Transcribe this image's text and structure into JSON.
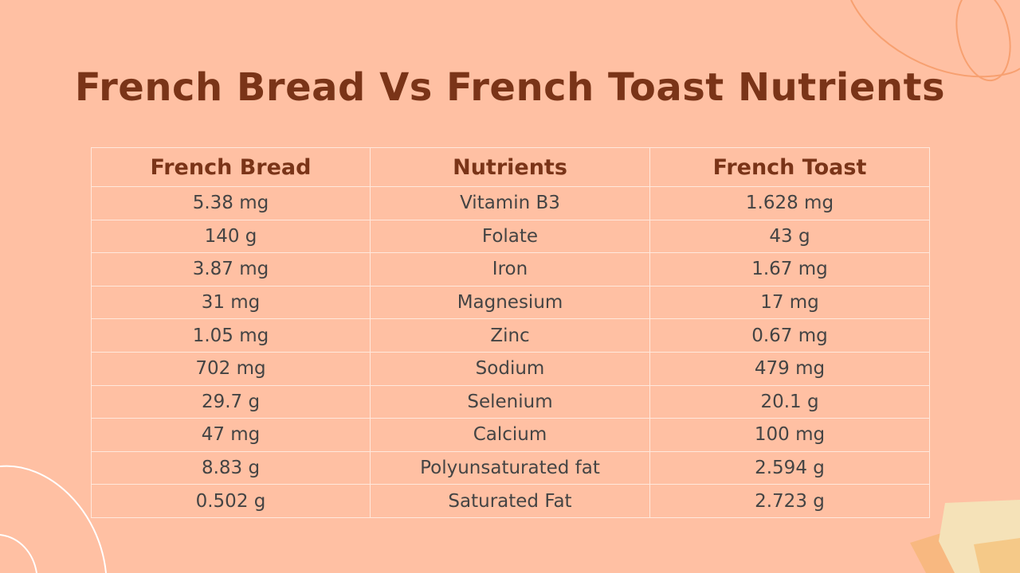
{
  "slide": {
    "title": "French Bread Vs French Toast Nutrients"
  },
  "table": {
    "headers": [
      "French Bread",
      "Nutrients",
      "French Toast"
    ],
    "rows": [
      [
        "5.38 mg",
        "Vitamin B3",
        "1.628 mg"
      ],
      [
        "140 g",
        "Folate",
        "43 g"
      ],
      [
        "3.87 mg",
        "Iron",
        "1.67 mg"
      ],
      [
        "31 mg",
        "Magnesium",
        "17 mg"
      ],
      [
        "1.05 mg",
        "Zinc",
        "0.67 mg"
      ],
      [
        "702 mg",
        "Sodium",
        "479 mg"
      ],
      [
        "29.7 g",
        "Selenium",
        "20.1 g"
      ],
      [
        "47 mg",
        "Calcium",
        "100 mg"
      ],
      [
        "8.83 g",
        "Polyunsaturated fat",
        "2.594 g"
      ],
      [
        "0.502 g",
        "Saturated Fat",
        "2.723 g"
      ]
    ]
  },
  "colors": {
    "background": "#ffc0a3",
    "title": "#7a3418",
    "header_text": "#7a3418",
    "cell_text": "#444444",
    "grid_lines": "#ffe8dc"
  }
}
